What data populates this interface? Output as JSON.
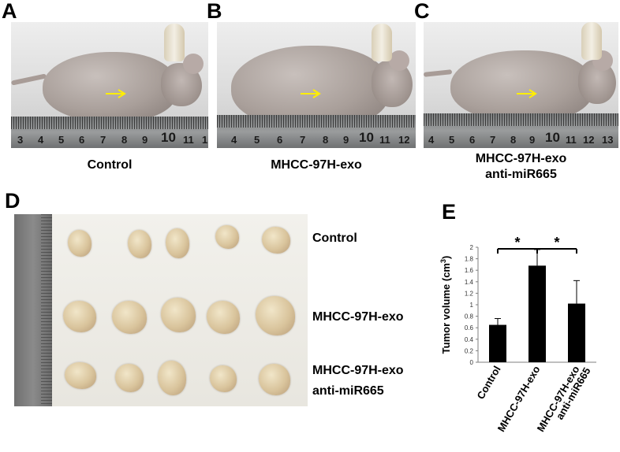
{
  "figure": {
    "panels": {
      "a": {
        "letter": "A",
        "caption": "Control",
        "ruler_numbers": [
          "3",
          "4",
          "5",
          "6",
          "7",
          "8",
          "9",
          "10",
          "11",
          "1"
        ]
      },
      "b": {
        "letter": "B",
        "caption": "MHCC-97H-exo",
        "ruler_numbers": [
          "4",
          "5",
          "6",
          "7",
          "8",
          "9",
          "10",
          "11",
          "12"
        ]
      },
      "c": {
        "letter": "C",
        "caption_line1": "MHCC-97H-exo",
        "caption_line2": "anti-miR665",
        "ruler_numbers": [
          "4",
          "5",
          "6",
          "7",
          "8",
          "9",
          "10",
          "11",
          "12",
          "13"
        ]
      },
      "d": {
        "letter": "D",
        "rows": [
          {
            "label_line1": "Control",
            "label_line2": ""
          },
          {
            "label_line1": "MHCC-97H-exo",
            "label_line2": ""
          },
          {
            "label_line1": "MHCC-97H-exo",
            "label_line2": "anti-miR665"
          }
        ]
      },
      "e": {
        "letter": "E"
      }
    },
    "colors": {
      "arrow": "#ffee00",
      "bar": "#000000"
    }
  },
  "chart_data": {
    "type": "bar",
    "categories": [
      "Control",
      "MHCC-97H-exo",
      "MHCC-97H-exo anti-miR665"
    ],
    "category_lines": [
      [
        "Control"
      ],
      [
        "MHCC-97H-exo"
      ],
      [
        "MHCC-97H-exo",
        "anti-miR665"
      ]
    ],
    "values": [
      0.65,
      1.68,
      1.02
    ],
    "errors": [
      0.11,
      0.28,
      0.4
    ],
    "ylabel": "Tumor volume (cm",
    "ylabel_superscript": "3",
    "ylabel_close": ")",
    "ylim": [
      0,
      2
    ],
    "yticks": [
      "0",
      "0.2",
      "0.4",
      "0.6",
      "0.8",
      "1",
      "1.2",
      "1.4",
      "1.6",
      "1.8",
      "2"
    ],
    "significance": [
      {
        "pair": [
          0,
          1
        ],
        "label": "*"
      },
      {
        "pair": [
          1,
          2
        ],
        "label": "*"
      }
    ],
    "grid": false
  }
}
